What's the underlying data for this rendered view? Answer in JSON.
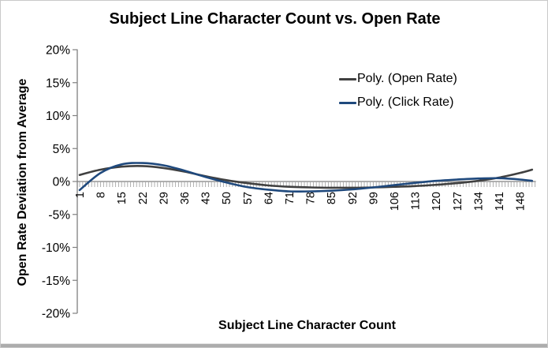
{
  "chart_data": {
    "type": "line",
    "title": "Subject Line Character Count vs. Open Rate",
    "xlabel": "Subject Line Character Count",
    "ylabel": "Open Rate Deviation from Average",
    "y_tick_labels": [
      "20%",
      "15%",
      "10%",
      "5%",
      "0%",
      "-5%",
      "-10%",
      "-15%",
      "-20%"
    ],
    "y_tick_values": [
      20,
      15,
      10,
      5,
      0,
      -5,
      -10,
      -15,
      -20
    ],
    "x_tick_labels": [
      "1",
      "8",
      "15",
      "22",
      "29",
      "36",
      "43",
      "50",
      "57",
      "64",
      "71",
      "78",
      "85",
      "92",
      "99",
      "106",
      "113",
      "120",
      "127",
      "134",
      "141",
      "148"
    ],
    "ylim": [
      -20,
      20
    ],
    "xlim": [
      1,
      153
    ],
    "grid": false,
    "legend_position": "upper right inside plot",
    "x": [
      1,
      8,
      15,
      22,
      29,
      36,
      43,
      50,
      57,
      64,
      71,
      78,
      85,
      92,
      99,
      106,
      113,
      120,
      127,
      134,
      141,
      148,
      152
    ],
    "series": [
      {
        "name": "Poly. (Open Rate)",
        "color": "#404040",
        "values": [
          1.0,
          1.8,
          2.25,
          2.35,
          2.05,
          1.5,
          0.8,
          0.2,
          -0.25,
          -0.6,
          -0.8,
          -0.9,
          -0.95,
          -0.95,
          -0.9,
          -0.8,
          -0.7,
          -0.5,
          -0.25,
          0.1,
          0.6,
          1.3,
          1.8
        ]
      },
      {
        "name": "Poly. (Click Rate)",
        "color": "#1F497D",
        "values": [
          -1.3,
          1.3,
          2.6,
          2.8,
          2.45,
          1.65,
          0.7,
          -0.15,
          -0.85,
          -1.25,
          -1.5,
          -1.5,
          -1.4,
          -1.2,
          -0.9,
          -0.55,
          -0.2,
          0.1,
          0.3,
          0.45,
          0.5,
          0.3,
          0.1
        ]
      }
    ],
    "axis_colors": {
      "axis_line": "#808080",
      "minor_tick": "#A6A6A6",
      "text": "#000000"
    }
  }
}
